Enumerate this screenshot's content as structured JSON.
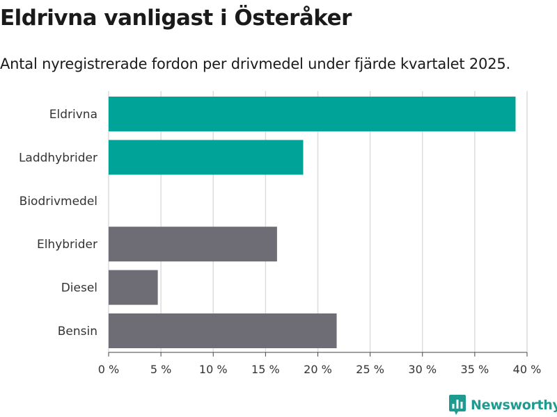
{
  "chart_data": {
    "type": "bar",
    "orientation": "horizontal",
    "title": "Eldrivna vanligast i Österåker",
    "subtitle": "Antal nyregistrerade fordon per drivmedel under fjärde kvartalet 2025.",
    "categories": [
      "Eldrivna",
      "Laddhybrider",
      "Biodrivmedel",
      "Elhybrider",
      "Diesel",
      "Bensin"
    ],
    "values": [
      38.9,
      18.6,
      0,
      16.1,
      4.7,
      21.8
    ],
    "unit": "%",
    "xlim": [
      0,
      40
    ],
    "xticks": [
      0,
      5,
      10,
      15,
      20,
      25,
      30,
      35,
      40
    ],
    "xtick_labels": [
      "0 %",
      "5 %",
      "10 %",
      "15 %",
      "20 %",
      "25 %",
      "30 %",
      "35 %",
      "40 %"
    ],
    "xlabel": "",
    "ylabel": "",
    "grid": true,
    "colors": [
      "#00a398",
      "#00a398",
      "#00a398",
      "#6e6d75",
      "#6e6d75",
      "#6e6d75"
    ]
  },
  "brand": {
    "name": "Newsworthy",
    "color": "#1f9a8f",
    "icon": "bar-chart-speech-bubble-icon"
  }
}
